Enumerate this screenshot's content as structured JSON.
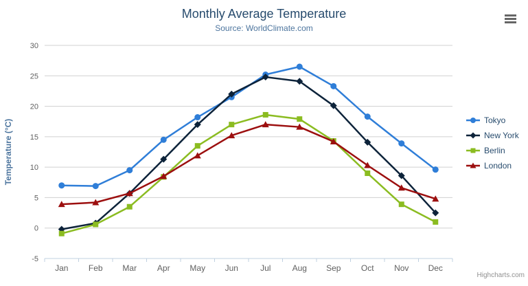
{
  "header": {
    "title": "Monthly Average Temperature",
    "subtitle": "Source: WorldClimate.com"
  },
  "icons": {
    "context_menu": "hamburger-menu-icon"
  },
  "credits": {
    "label": "Highcharts.com"
  },
  "colors": {
    "title": "#274b6d",
    "subtitle": "#4d759e",
    "axis_title": "#4d759e",
    "tick_label": "#606060",
    "grid_line": "#d0d0d0",
    "axis_line": "#c0d0e0",
    "legend_text": "#274b6d",
    "credits_text": "#909090"
  },
  "chart_data": {
    "type": "line",
    "title": "Monthly Average Temperature",
    "subtitle": "Source: WorldClimate.com",
    "xlabel": "",
    "ylabel": "Temperature (°C)",
    "ylim": [
      -5,
      30
    ],
    "yticks": [
      30,
      25,
      20,
      15,
      10,
      5,
      0,
      -5
    ],
    "grid": true,
    "legend_position": "right",
    "categories": [
      "Jan",
      "Feb",
      "Mar",
      "Apr",
      "May",
      "Jun",
      "Jul",
      "Aug",
      "Sep",
      "Oct",
      "Nov",
      "Dec"
    ],
    "series": [
      {
        "name": "Tokyo",
        "color": "#2f7ed8",
        "marker": "circle",
        "values": [
          7.0,
          6.9,
          9.5,
          14.5,
          18.2,
          21.5,
          25.2,
          26.5,
          23.3,
          18.3,
          13.9,
          9.6
        ]
      },
      {
        "name": "New York",
        "color": "#0d233a",
        "marker": "diamond",
        "values": [
          -0.2,
          0.8,
          5.7,
          11.3,
          17.0,
          22.0,
          24.8,
          24.1,
          20.1,
          14.1,
          8.6,
          2.5
        ]
      },
      {
        "name": "Berlin",
        "color": "#8bbc21",
        "marker": "square",
        "values": [
          -0.9,
          0.6,
          3.5,
          8.4,
          13.5,
          17.0,
          18.6,
          17.9,
          14.3,
          9.0,
          3.9,
          1.0
        ]
      },
      {
        "name": "London",
        "color": "#9c0f0f",
        "marker": "triangle",
        "values": [
          3.9,
          4.2,
          5.7,
          8.5,
          11.9,
          15.2,
          17.0,
          16.6,
          14.2,
          10.3,
          6.6,
          4.8
        ]
      }
    ]
  }
}
